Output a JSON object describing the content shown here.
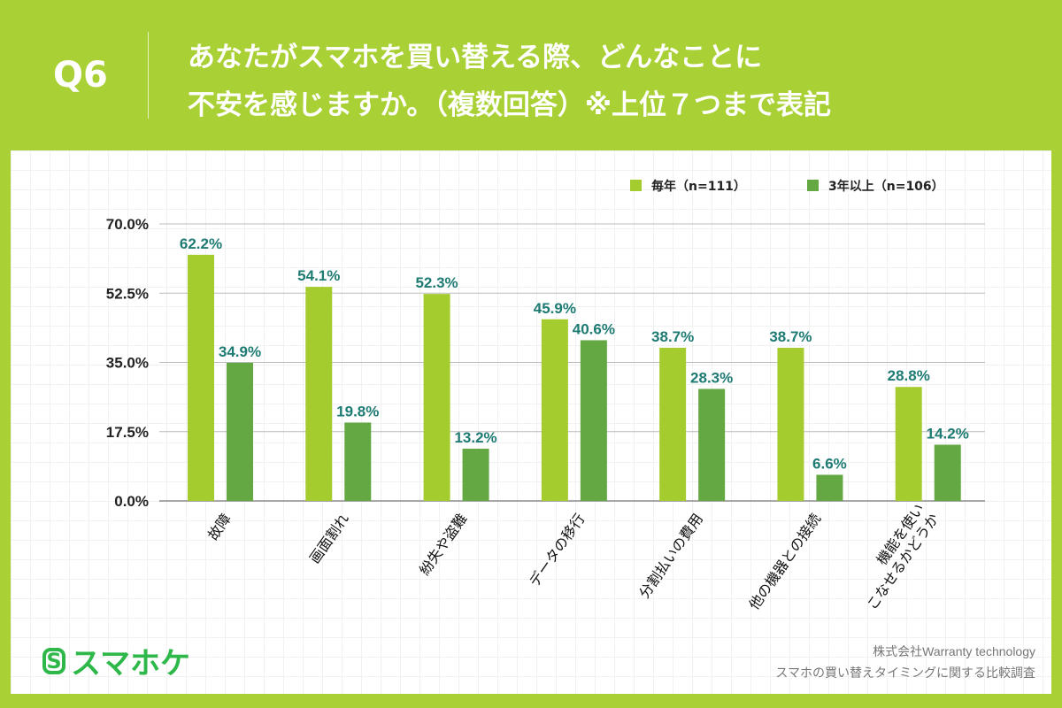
{
  "header": {
    "question": "Q6",
    "title_line1": "あなたがスマホを買い替える際、どんなことに",
    "title_line2": "不安を感じますか。（複数回答）※上位７つまで表記"
  },
  "chart_data": {
    "type": "bar",
    "categories": [
      "故障",
      "画面割れ",
      "紛失や盗難",
      "データの移行",
      "分割払いの費用",
      "他の機器との接続",
      "機能を使い\nこなせるかどうか"
    ],
    "series": [
      {
        "name": "毎年（n=111）",
        "color": "#a5cc2e",
        "values": [
          62.2,
          54.1,
          52.3,
          45.9,
          38.7,
          38.7,
          28.8
        ]
      },
      {
        "name": "3年以上（n=106）",
        "color": "#63a843",
        "values": [
          34.9,
          19.8,
          13.2,
          40.6,
          28.3,
          6.6,
          14.2
        ]
      }
    ],
    "ylim": [
      0,
      70
    ],
    "yticks": [
      "0.0%",
      "17.5%",
      "35.0%",
      "52.5%",
      "70.0%"
    ],
    "label_color": "#1e7b73",
    "grid": true,
    "legend": "top-right"
  },
  "footer": {
    "logo": "スマホケ",
    "company": "株式会社Warranty technology",
    "survey": "スマホの買い替えタイミングに関する比較調査"
  }
}
